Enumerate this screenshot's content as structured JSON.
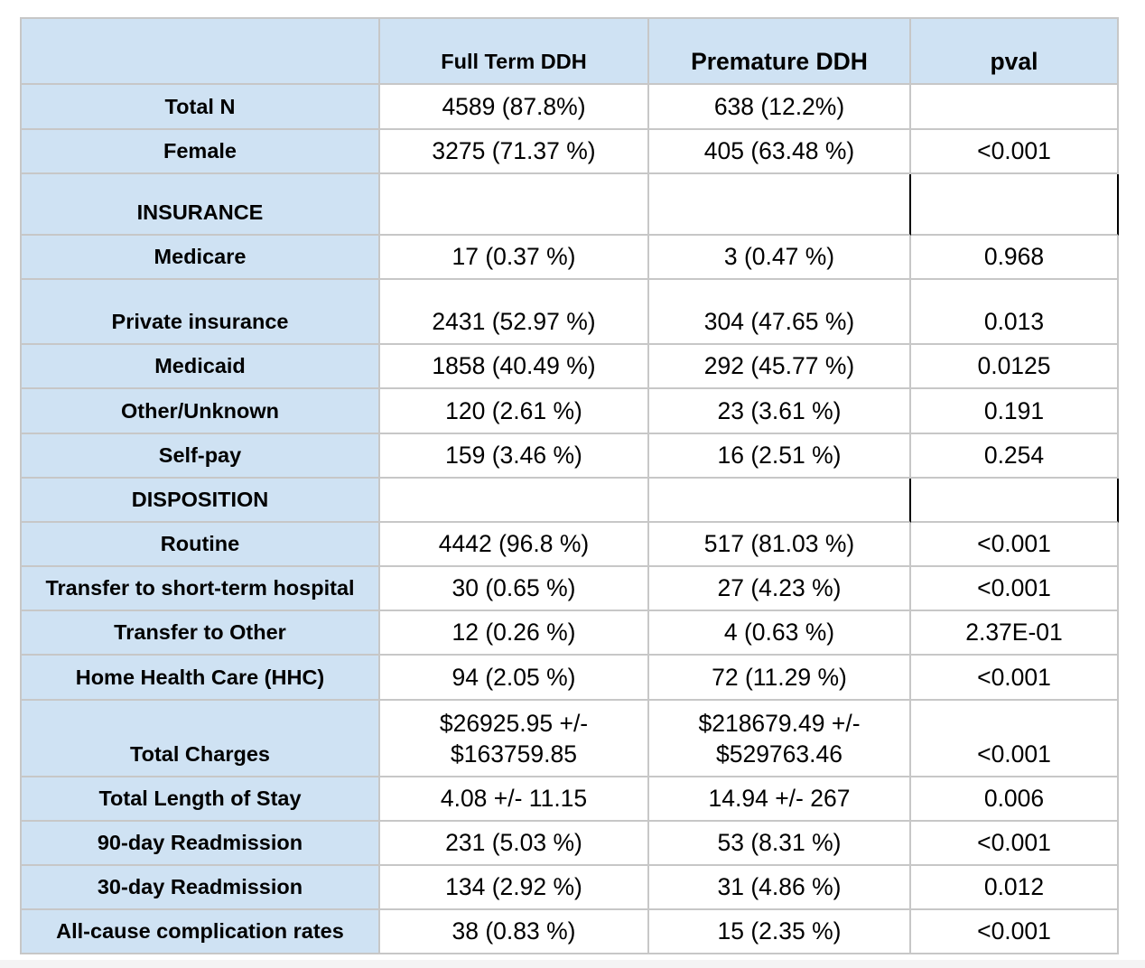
{
  "colors": {
    "header_fill": "#cfe2f3",
    "grid_line": "#c7c7c7",
    "section_border": "#000000",
    "text": "#000000"
  },
  "chart_data": {
    "type": "table",
    "columns": [
      "Full Term DDH",
      "Premature DDH",
      "pval"
    ],
    "rows": [
      {
        "label": "Total N",
        "full_term": "4589 (87.8%)",
        "premature": "638 (12.2%)"
      },
      {
        "label": "Female",
        "full_term": "3275 (71.37 %)",
        "premature": "405 (63.48 %)",
        "pval": "<0.001"
      },
      {
        "label": "INSURANCE"
      },
      {
        "label": "Medicare",
        "full_term": "17 (0.37 %)",
        "premature": "3 (0.47 %)",
        "pval": "0.968"
      },
      {
        "label": "Private insurance",
        "full_term": "2431 (52.97 %)",
        "premature": "304 (47.65 %)",
        "pval": "0.013"
      },
      {
        "label": "Medicaid",
        "full_term": "1858 (40.49 %)",
        "premature": "292 (45.77 %)",
        "pval": "0.0125"
      },
      {
        "label": "Other/Unknown",
        "full_term": "120 (2.61 %)",
        "premature": "23 (3.61 %)",
        "pval": "0.191"
      },
      {
        "label": "Self-pay",
        "full_term": "159 (3.46 %)",
        "premature": "16 (2.51 %)",
        "pval": "0.254"
      },
      {
        "label": "DISPOSITION"
      },
      {
        "label": "Routine",
        "full_term": "4442 (96.8 %)",
        "premature": "517 (81.03 %)",
        "pval": "<0.001"
      },
      {
        "label": "Transfer to short-term hospital",
        "full_term": "30 (0.65 %)",
        "premature": "27 (4.23 %)",
        "pval": "<0.001"
      },
      {
        "label": "Transfer to Other",
        "full_term": "12 (0.26 %)",
        "premature": "4 (0.63 %)",
        "pval": "2.37E-01"
      },
      {
        "label": "Home Health Care (HHC)",
        "full_term": "94 (2.05 %)",
        "premature": "72 (11.29 %)",
        "pval": "<0.001"
      },
      {
        "label": "Total Charges",
        "full_term": "$26925.95 +/- $163759.85",
        "premature": "$218679.49 +/- $529763.46",
        "pval": "<0.001"
      },
      {
        "label": "Total Length of Stay",
        "full_term": "4.08 +/- 11.15",
        "premature": "14.94 +/- 267",
        "pval": "0.006"
      },
      {
        "label": "90-day Readmission",
        "full_term": "231 (5.03 %)",
        "premature": "53 (8.31 %)",
        "pval": "<0.001"
      },
      {
        "label": "30-day Readmission",
        "full_term": "134 (2.92 %)",
        "premature": "31 (4.86 %)",
        "pval": "0.012"
      },
      {
        "label": "All-cause complication rates",
        "full_term": "38 (0.83 %)",
        "premature": "15 (2.35 %)",
        "pval": "<0.001"
      }
    ]
  }
}
